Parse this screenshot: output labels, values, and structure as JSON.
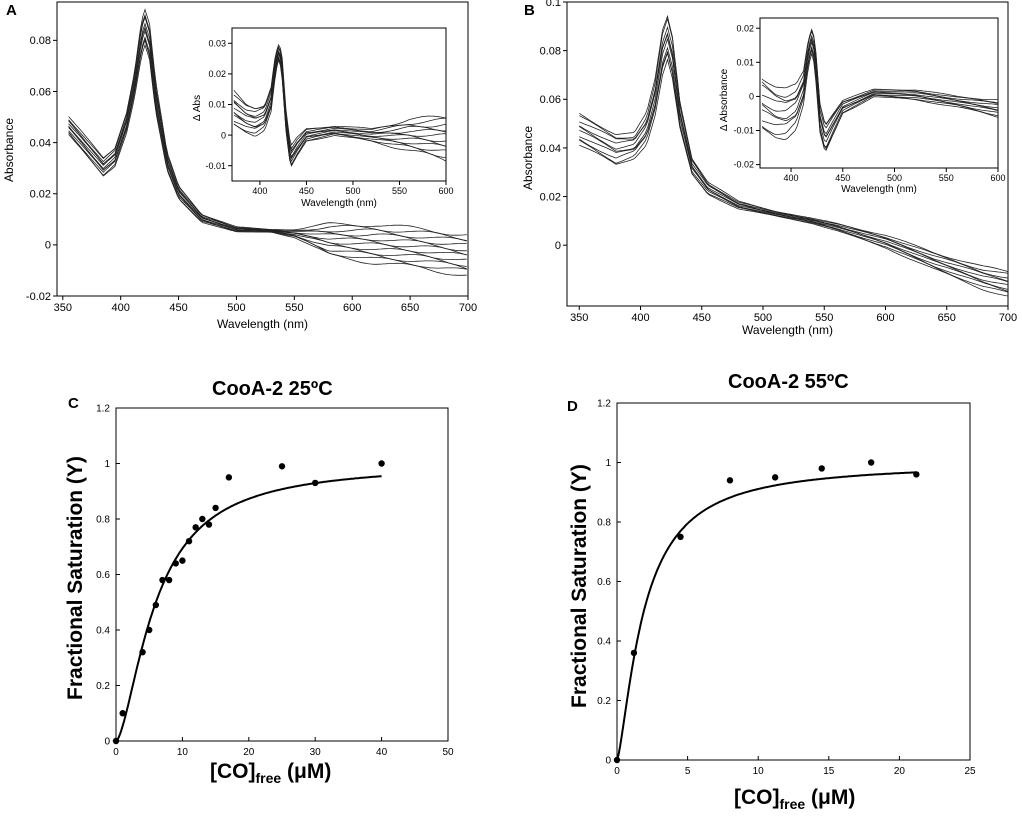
{
  "panels": {
    "A": {
      "letter": "A"
    },
    "B": {
      "letter": "B"
    },
    "C": {
      "letter": "C",
      "title": "CooA-2 25ºC"
    },
    "D": {
      "letter": "D",
      "title": "CooA-2 55ºC"
    }
  },
  "chart_data": [
    {
      "id": "A",
      "type": "line",
      "xlabel": "Wavelength (nm)",
      "ylabel": "Absorbance",
      "xlim": [
        345,
        700
      ],
      "ylim": [
        -0.02,
        0.095
      ],
      "xticks": [
        "350",
        "400",
        "450",
        "500",
        "550",
        "600",
        "650",
        "700"
      ],
      "yticks": [
        "-0.02",
        "0",
        "0.02",
        "0.04",
        "0.06",
        "0.08"
      ],
      "series_description": "overlaid absorbance spectra (approx. 12 traces)",
      "series": [
        {
          "name": "spectrum (representative)",
          "x": [
            355,
            370,
            385,
            395,
            405,
            412,
            418,
            421,
            425,
            430,
            440,
            450,
            470,
            500,
            530,
            550,
            580,
            620,
            660,
            700
          ],
          "y": [
            0.046,
            0.038,
            0.03,
            0.034,
            0.048,
            0.064,
            0.084,
            0.09,
            0.082,
            0.06,
            0.033,
            0.021,
            0.011,
            0.006,
            0.0055,
            0.004,
            -0.001,
            -0.004,
            -0.006,
            -0.008
          ]
        }
      ],
      "spread_max": [
        0.05,
        0.042,
        0.034,
        0.038,
        0.052,
        0.068,
        0.088,
        0.092,
        0.086,
        0.064,
        0.036,
        0.023,
        0.012,
        0.007,
        0.006,
        0.006,
        0.008,
        0.008,
        0.006,
        0.004
      ],
      "spread_min": [
        0.043,
        0.035,
        0.027,
        0.031,
        0.044,
        0.058,
        0.074,
        0.078,
        0.072,
        0.052,
        0.029,
        0.018,
        0.009,
        0.005,
        0.005,
        0.003,
        -0.004,
        -0.007,
        -0.009,
        -0.012
      ],
      "inset": {
        "xlabel": "Wavelength (nm)",
        "ylabel": "Δ Abs",
        "xlim": [
          370,
          600
        ],
        "ylim": [
          -0.015,
          0.035
        ],
        "xticks": [
          "400",
          "450",
          "500",
          "550",
          "600"
        ],
        "yticks": [
          "-0.01",
          "0",
          "0.01",
          "0.02",
          "0.03"
        ],
        "series": [
          {
            "name": "difference (representative)",
            "x": [
              372,
              385,
              395,
              405,
              412,
              416,
              419,
              421,
              424,
              428,
              433,
              440,
              450,
              480,
              520,
              560,
              600
            ],
            "y": [
              0.009,
              0.006,
              0.005,
              0.006,
              0.012,
              0.022,
              0.028,
              0.029,
              0.022,
              0.004,
              -0.008,
              -0.004,
              0.0,
              0.001,
              0.0,
              -0.002,
              -0.003
            ]
          }
        ],
        "spread_max": [
          0.014,
          0.01,
          0.009,
          0.01,
          0.016,
          0.025,
          0.029,
          0.03,
          0.025,
          0.008,
          -0.004,
          -0.001,
          0.002,
          0.003,
          0.002,
          0.005,
          0.006
        ],
        "spread_min": [
          0.003,
          0.001,
          0.0,
          0.002,
          0.008,
          0.018,
          0.024,
          0.025,
          0.018,
          0.001,
          -0.011,
          -0.007,
          -0.002,
          0.0,
          -0.002,
          -0.005,
          -0.008
        ]
      }
    },
    {
      "id": "B",
      "type": "line",
      "xlabel": "Wavelength (nm)",
      "ylabel": "Absorbance",
      "xlim": [
        340,
        700
      ],
      "ylim": [
        -0.025,
        0.1
      ],
      "xticks": [
        "350",
        "400",
        "450",
        "500",
        "550",
        "600",
        "650",
        "700"
      ],
      "yticks": [
        "0",
        "0.02",
        "0.04",
        "0.06",
        "0.08",
        "0.1"
      ],
      "series_description": "overlaid absorbance spectra (approx. 10 traces)",
      "series": [
        {
          "name": "spectrum (representative)",
          "x": [
            350,
            365,
            380,
            395,
            405,
            412,
            418,
            422,
            426,
            432,
            442,
            455,
            480,
            510,
            540,
            560,
            600,
            640,
            680,
            700
          ],
          "y": [
            0.049,
            0.044,
            0.04,
            0.04,
            0.048,
            0.062,
            0.082,
            0.091,
            0.08,
            0.055,
            0.033,
            0.024,
            0.017,
            0.013,
            0.01,
            0.008,
            0.002,
            -0.006,
            -0.013,
            -0.016
          ]
        }
      ],
      "spread_max": [
        0.054,
        0.05,
        0.046,
        0.046,
        0.054,
        0.068,
        0.088,
        0.094,
        0.086,
        0.06,
        0.036,
        0.026,
        0.018,
        0.014,
        0.011,
        0.009,
        0.004,
        -0.003,
        -0.009,
        -0.011
      ],
      "spread_min": [
        0.041,
        0.037,
        0.033,
        0.036,
        0.042,
        0.054,
        0.07,
        0.076,
        0.068,
        0.048,
        0.029,
        0.021,
        0.015,
        0.012,
        0.009,
        0.006,
        -0.001,
        -0.01,
        -0.018,
        -0.021
      ],
      "inset": {
        "xlabel": "Wavelength (nm)",
        "ylabel": "Δ Absorbance",
        "xlim": [
          370,
          600
        ],
        "ylim": [
          -0.021,
          0.023
        ],
        "xticks": [
          "400",
          "450",
          "500",
          "550",
          "600"
        ],
        "yticks": [
          "-0.02",
          "-0.01",
          "0",
          "0.01",
          "0.02"
        ],
        "series": [
          {
            "name": "difference (representative)",
            "x": [
              372,
              385,
              395,
              405,
              412,
              416,
              419,
              421,
              424,
              428,
              433,
              440,
              450,
              480,
              520,
              560,
              600
            ],
            "y": [
              0.0,
              -0.003,
              -0.004,
              -0.002,
              0.004,
              0.012,
              0.017,
              0.018,
              0.01,
              -0.006,
              -0.012,
              -0.008,
              -0.003,
              0.001,
              0.001,
              -0.001,
              -0.003
            ]
          }
        ],
        "spread_max": [
          0.006,
          0.003,
          0.002,
          0.003,
          0.007,
          0.015,
          0.019,
          0.02,
          0.013,
          -0.002,
          -0.008,
          -0.005,
          -0.001,
          0.002,
          0.002,
          0.0,
          -0.001
        ],
        "spread_min": [
          -0.01,
          -0.012,
          -0.012,
          -0.009,
          -0.002,
          0.007,
          0.012,
          0.013,
          0.004,
          -0.011,
          -0.017,
          -0.012,
          -0.005,
          0.0,
          -0.001,
          -0.003,
          -0.006
        ]
      }
    },
    {
      "id": "C",
      "type": "scatter",
      "title": "CooA-2 25ºC",
      "xlabel": "[CO]free (μM)",
      "xlabel_main": "[CO]",
      "xlabel_sub": "free",
      "xlabel_unit": " (μM)",
      "ylabel": "Fractional Saturation (Y)",
      "xlim": [
        0,
        50
      ],
      "ylim": [
        0,
        1.2
      ],
      "xticks": [
        "0",
        "10",
        "20",
        "30",
        "40",
        "50"
      ],
      "yticks": [
        "0",
        "0.2",
        "0.4",
        "0.6",
        "0.8",
        "1",
        "1.2"
      ],
      "points": {
        "x": [
          0,
          1,
          4,
          5,
          6,
          7,
          8,
          9,
          10,
          11,
          12,
          13,
          14,
          15,
          17,
          25,
          30,
          40
        ],
        "y": [
          0,
          0.1,
          0.32,
          0.4,
          0.49,
          0.58,
          0.58,
          0.64,
          0.65,
          0.72,
          0.77,
          0.8,
          0.78,
          0.84,
          0.95,
          0.99,
          0.93,
          1.0
        ]
      },
      "fit": {
        "model": "Hill",
        "ymax": 1.0,
        "k": 6.0,
        "n": 1.6
      }
    },
    {
      "id": "D",
      "type": "scatter",
      "title": "CooA-2 55ºC",
      "xlabel": "[CO]free (μM)",
      "xlabel_main": "[CO]",
      "xlabel_sub": "free",
      "xlabel_unit": " (μM)",
      "ylabel": "Fractional Saturation (Y)",
      "xlim": [
        0,
        25
      ],
      "ylim": [
        0,
        1.2
      ],
      "xticks": [
        "0",
        "5",
        "10",
        "15",
        "20",
        "25"
      ],
      "yticks": [
        "0",
        "0.2",
        "0.4",
        "0.6",
        "0.8",
        "1",
        "1.2"
      ],
      "points": {
        "x": [
          0,
          1.2,
          4.5,
          8,
          11.2,
          14.5,
          18,
          21.2
        ],
        "y": [
          0,
          0.36,
          0.75,
          0.94,
          0.95,
          0.98,
          1.0,
          0.96
        ]
      },
      "fit": {
        "model": "Hill",
        "ymax": 1.0,
        "k": 1.9,
        "n": 1.4
      }
    }
  ]
}
